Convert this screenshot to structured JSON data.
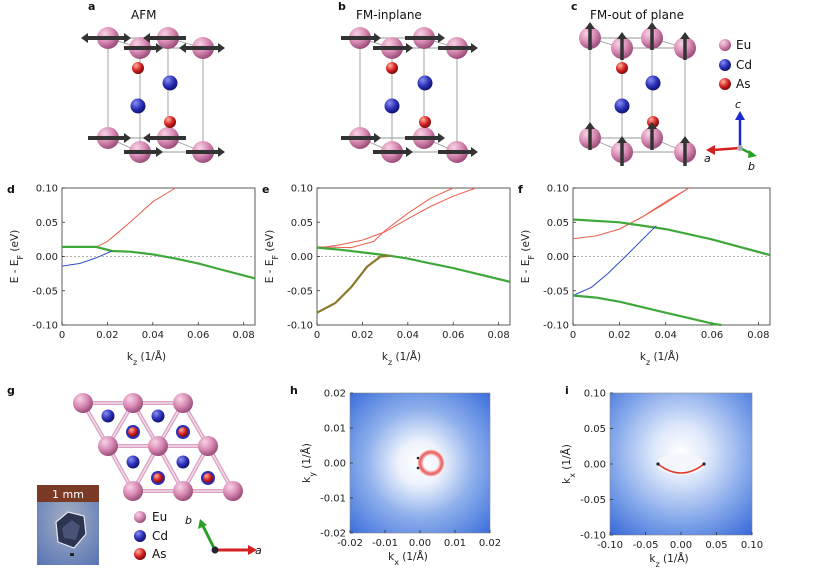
{
  "panel_labels": [
    "a",
    "b",
    "c",
    "d",
    "e",
    "f",
    "g",
    "h",
    "i"
  ],
  "structure_titles": {
    "a": "AFM",
    "b": "FM-inplane",
    "c": "FM-out of plane"
  },
  "legend": [
    {
      "name": "Eu",
      "color": "#d98bb5"
    },
    {
      "name": "Cd",
      "color": "#2a2fb8"
    },
    {
      "name": "As",
      "color": "#d42020"
    }
  ],
  "axis_letters": {
    "a": "a",
    "b": "b",
    "c": "c"
  },
  "scale_bar": "1 mm",
  "colors": {
    "red_band": "#e9604e",
    "green_band": "#3fa83a",
    "blue_band": "#2f4ec4",
    "olive_band": "#8a7a2a",
    "dash": "#999999"
  },
  "chart_data": [
    {
      "panel": "d",
      "type": "line",
      "xlabel": "kz (1/Å)",
      "ylabel": "E - EF (eV)",
      "xlim": [
        0,
        0.085
      ],
      "ylim": [
        -0.1,
        0.1
      ],
      "xticks": [
        "0",
        "0.02",
        "0.04",
        "0.06",
        "0.08"
      ],
      "yticks": [
        "0.10",
        "0.05",
        "0.00",
        "-0.05",
        "-0.10"
      ],
      "series": [
        {
          "name": "upper-red",
          "x": [
            0,
            0.015,
            0.02,
            0.03,
            0.04,
            0.05
          ],
          "y": [
            0.014,
            0.014,
            0.022,
            0.05,
            0.08,
            0.1
          ]
        },
        {
          "name": "green",
          "x": [
            0,
            0.015,
            0.022,
            0.03,
            0.04,
            0.05,
            0.06,
            0.07,
            0.085
          ],
          "y": [
            0.014,
            0.014,
            0.008,
            0.007,
            0.003,
            -0.003,
            -0.01,
            -0.019,
            -0.032
          ]
        },
        {
          "name": "lower-blue",
          "x": [
            0,
            0.008,
            0.015,
            0.022
          ],
          "y": [
            -0.014,
            -0.01,
            -0.002,
            0.008
          ]
        }
      ]
    },
    {
      "panel": "e",
      "type": "line",
      "xlabel": "kz (1/Å)",
      "ylabel": "E - EF (eV)",
      "xlim": [
        0,
        0.085
      ],
      "ylim": [
        -0.1,
        0.1
      ],
      "xticks": [
        "0",
        "0.02",
        "0.04",
        "0.06",
        "0.08"
      ],
      "yticks": [
        "0.10",
        "0.05",
        "0.00",
        "-0.05",
        "-0.10"
      ],
      "series": [
        {
          "name": "red-1",
          "x": [
            0,
            0.01,
            0.02,
            0.03,
            0.04,
            0.05,
            0.06,
            0.07
          ],
          "y": [
            0.012,
            0.017,
            0.024,
            0.036,
            0.055,
            0.073,
            0.088,
            0.1
          ]
        },
        {
          "name": "red-2",
          "x": [
            0,
            0.015,
            0.025,
            0.03,
            0.04,
            0.05,
            0.06
          ],
          "y": [
            0.014,
            0.013,
            0.022,
            0.038,
            0.063,
            0.085,
            0.1
          ]
        },
        {
          "name": "green",
          "x": [
            0,
            0.01,
            0.02,
            0.03,
            0.04,
            0.05,
            0.06,
            0.07,
            0.085
          ],
          "y": [
            0.013,
            0.01,
            0.006,
            0.002,
            -0.003,
            -0.01,
            -0.017,
            -0.025,
            -0.037
          ]
        },
        {
          "name": "olive",
          "x": [
            0,
            0.008,
            0.015,
            0.022,
            0.028,
            0.032
          ],
          "y": [
            -0.082,
            -0.068,
            -0.045,
            -0.015,
            0.0,
            0.001
          ]
        }
      ]
    },
    {
      "panel": "f",
      "type": "line",
      "xlabel": "kz (1/Å)",
      "ylabel": "E - EF (eV)",
      "xlim": [
        0,
        0.085
      ],
      "ylim": [
        -0.1,
        0.1
      ],
      "xticks": [
        "0",
        "0.02",
        "0.04",
        "0.06",
        "0.08"
      ],
      "yticks": [
        "0.10",
        "0.05",
        "0.00",
        "-0.05",
        "-0.10"
      ],
      "series": [
        {
          "name": "red-1",
          "x": [
            0,
            0.01,
            0.02,
            0.03,
            0.04,
            0.05
          ],
          "y": [
            0.026,
            0.03,
            0.04,
            0.058,
            0.078,
            0.1
          ]
        },
        {
          "name": "red-2",
          "x": [
            0.02,
            0.03,
            0.04,
            0.05
          ],
          "y": [
            0.04,
            0.058,
            0.08,
            0.1
          ]
        },
        {
          "name": "green-upper",
          "x": [
            0,
            0.02,
            0.04,
            0.06,
            0.085
          ],
          "y": [
            0.054,
            0.05,
            0.04,
            0.025,
            0.002
          ]
        },
        {
          "name": "blue",
          "x": [
            0,
            0.008,
            0.015,
            0.022,
            0.03,
            0.036
          ],
          "y": [
            -0.057,
            -0.045,
            -0.025,
            -0.002,
            0.025,
            0.045
          ]
        },
        {
          "name": "green-lower",
          "x": [
            0,
            0.01,
            0.02,
            0.03,
            0.04,
            0.05,
            0.06,
            0.064
          ],
          "y": [
            -0.057,
            -0.06,
            -0.066,
            -0.074,
            -0.082,
            -0.09,
            -0.098,
            -0.1
          ]
        }
      ]
    },
    {
      "panel": "h",
      "type": "heatmap",
      "xlabel": "kx (1/Å)",
      "ylabel": "ky (1/Å)",
      "xlim": [
        -0.02,
        0.02
      ],
      "ylim": [
        -0.02,
        0.02
      ],
      "xticks": [
        "-0.02",
        "-0.01",
        "0.00",
        "0.01",
        "0.02"
      ],
      "yticks": [
        "0.02",
        "0.01",
        "0.00",
        "-0.01",
        "-0.02"
      ]
    },
    {
      "panel": "i",
      "type": "heatmap",
      "xlabel": "kz (1/Å)",
      "ylabel": "kx (1/Å)",
      "xlim": [
        -0.1,
        0.1
      ],
      "ylim": [
        -0.1,
        0.1
      ],
      "xticks": [
        "-0.10",
        "-0.05",
        "0.00",
        "0.05",
        "0.10"
      ],
      "yticks": [
        "0.10",
        "0.05",
        "0.00",
        "-0.05",
        "-0.10"
      ]
    }
  ]
}
